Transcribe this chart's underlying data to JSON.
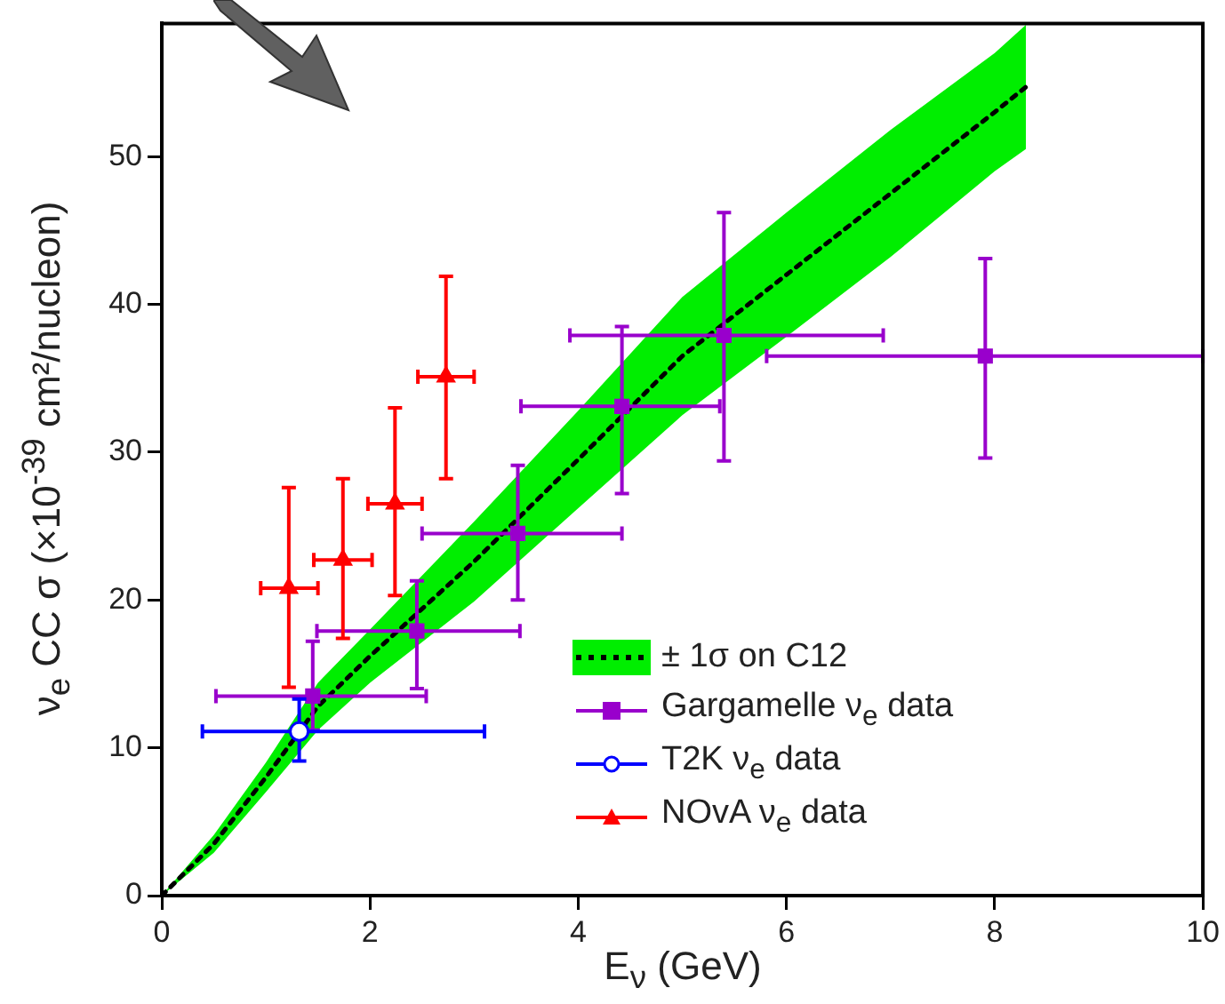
{
  "chart_data": {
    "type": "scatter",
    "xlabel": "E$_{ν}$ (GeV)",
    "ylabel": "ν$_{e}$ CC σ (×10$^{-39}$ cm²/nucleon)",
    "xlim": [
      0,
      10
    ],
    "xticks": [
      0,
      2,
      4,
      6,
      8,
      10
    ],
    "ylim": [
      0,
      59
    ],
    "yticks": [
      0,
      10,
      20,
      30,
      40,
      50
    ],
    "grid": false,
    "legend": "bottom right",
    "series": [
      {
        "name": "± 1σ on C12",
        "type": "line",
        "color": "#000000",
        "line_style": "dotted",
        "marker": "none",
        "x": [
          0,
          0.5,
          1,
          1.5,
          2,
          3,
          4,
          5,
          6,
          7,
          8,
          8.3
        ],
        "values": [
          0,
          3.5,
          8,
          12.8,
          16.2,
          22.6,
          29.5,
          36.5,
          42,
          47.5,
          53,
          54.7
        ],
        "lower": [
          0,
          2.9,
          7,
          11.2,
          14.4,
          19.9,
          26.2,
          32.5,
          37.8,
          43.2,
          49,
          50.5
        ],
        "upper": [
          0,
          4.1,
          9,
          14.4,
          18,
          25.3,
          32.8,
          40.5,
          46.2,
          51.8,
          57,
          58.9
        ]
      },
      {
        "name": "Gargamelle ν$_{e}$ data",
        "color": "#9900cc",
        "marker": "square",
        "x": [
          1.45,
          2.45,
          3.42,
          4.42,
          5.4,
          7.91
        ],
        "values": [
          13.5,
          17.9,
          24.5,
          33.1,
          37.9,
          36.5
        ],
        "errors": [
          [
            11.2,
            17.2
          ],
          [
            14,
            21.3
          ],
          [
            20,
            29.1
          ],
          [
            27.2,
            38.5
          ],
          [
            29.4,
            46.2
          ],
          [
            29.6,
            43.1
          ]
        ],
        "xerrors": [
          [
            0.52,
            2.54
          ],
          [
            1.49,
            3.44
          ],
          [
            2.5,
            4.42
          ],
          [
            3.45,
            5.36
          ],
          [
            3.92,
            6.93
          ],
          [
            5.81,
            10
          ]
        ]
      },
      {
        "name": "T2K ν$_{e}$ data",
        "color": "#0000ff",
        "marker": "circle",
        "x": [
          1.32
        ],
        "values": [
          11.1
        ],
        "errors": [
          [
            9.1,
            13.3
          ]
        ],
        "xerrors": [
          [
            0.39,
            3.1
          ]
        ]
      },
      {
        "name": "NOvA ν$_{e}$ data",
        "color": "#ff0000",
        "marker": "triangle",
        "x": [
          1.22,
          1.74,
          2.24,
          2.73
        ],
        "values": [
          20.8,
          22.7,
          26.5,
          35.1
        ],
        "errors": [
          [
            14.1,
            27.6
          ],
          [
            17.4,
            28.2
          ],
          [
            20.3,
            33
          ],
          [
            28.2,
            41.9
          ]
        ],
        "xerrors": [
          [
            0.95,
            1.5
          ],
          [
            1.46,
            2.02
          ],
          [
            1.98,
            2.5
          ],
          [
            2.46,
            3
          ]
        ]
      }
    ]
  }
}
